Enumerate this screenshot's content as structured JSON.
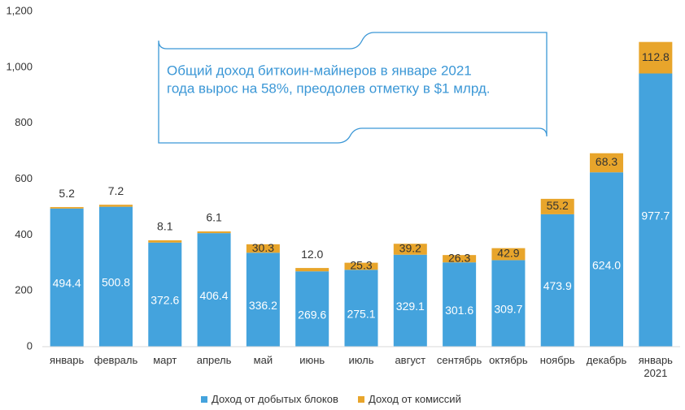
{
  "chart_data": {
    "type": "stacked_bar",
    "categories": [
      "январь",
      "февраль",
      "март",
      "апрель",
      "май",
      "июнь",
      "июль",
      "август",
      "сентябрь",
      "октябрь",
      "ноябрь",
      "декабрь",
      "январь 2021"
    ],
    "series": [
      {
        "name": "Доход от добытых блоков",
        "color": "#44a3dd",
        "values": [
          494.4,
          500.8,
          372.6,
          406.4,
          336.2,
          269.6,
          275.1,
          329.1,
          301.6,
          309.7,
          473.9,
          624.0,
          977.7
        ],
        "value_labels": [
          "494.4",
          "500.8",
          "372.6",
          "406.4",
          "336.2",
          "269.6",
          "275.1",
          "329.1",
          "301.6",
          "309.7",
          "473.9",
          "624.0",
          "977.7"
        ]
      },
      {
        "name": "Доход от комиссий",
        "color": "#e8a52b",
        "values": [
          5.2,
          7.2,
          8.1,
          6.1,
          30.3,
          12.0,
          25.3,
          39.2,
          26.3,
          42.9,
          55.2,
          68.3,
          112.8
        ],
        "value_labels": [
          "5.2",
          "7.2",
          "8.1",
          "6.1",
          "30.3",
          "12.0",
          "25.3",
          "39.2",
          "26.3",
          "42.9",
          "55.2",
          "68.3",
          "112.8"
        ]
      }
    ],
    "ylim": [
      0,
      1200
    ],
    "yticks": [
      0,
      200,
      400,
      600,
      800,
      {
        "value": 1000,
        "label": "1,000"
      },
      {
        "value": 1200,
        "label": "1,200"
      }
    ],
    "grid": false,
    "legend": "bottom",
    "annotation": [
      "Общий доход биткоин-майнеров в январе 2021",
      "года вырос на 58%, преодолев отметку в $1 млрд."
    ]
  }
}
